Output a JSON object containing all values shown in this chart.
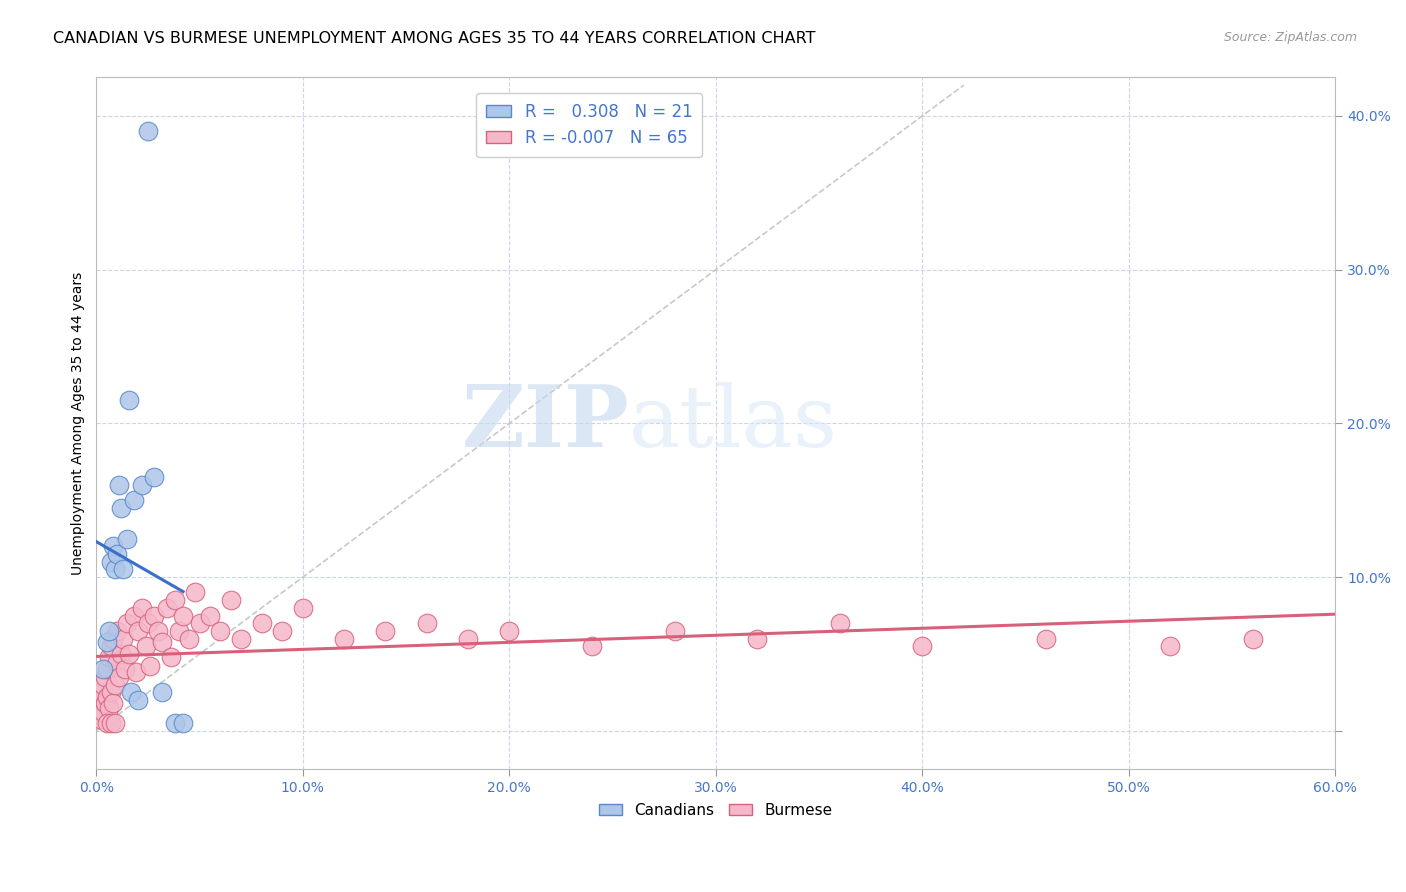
{
  "title": "CANADIAN VS BURMESE UNEMPLOYMENT AMONG AGES 35 TO 44 YEARS CORRELATION CHART",
  "source": "Source: ZipAtlas.com",
  "ylabel": "Unemployment Among Ages 35 to 44 years",
  "xlim": [
    0.0,
    0.6
  ],
  "ylim": [
    -0.025,
    0.425
  ],
  "xticks": [
    0.0,
    0.1,
    0.2,
    0.3,
    0.4,
    0.5,
    0.6
  ],
  "yticks": [
    0.0,
    0.1,
    0.2,
    0.3,
    0.4
  ],
  "canadian_fill": "#aec6e8",
  "canadian_edge": "#5588cc",
  "burmese_fill": "#f5b8cb",
  "burmese_edge": "#d9607a",
  "canadian_line_color": "#3a6fcc",
  "burmese_line_color": "#d9607a",
  "diagonal_color": "#bbbbbb",
  "R_canadian": 0.308,
  "N_canadian": 21,
  "R_burmese": -0.007,
  "N_burmese": 65,
  "watermark_zip": "ZIP",
  "watermark_atlas": "atlas",
  "background_color": "#ffffff",
  "grid_color": "#ccd6e8",
  "title_fontsize": 11.5,
  "source_fontsize": 9,
  "axis_label_fontsize": 10,
  "tick_fontsize": 10,
  "legend_fontsize": 12,
  "canadian_x": [
    0.003,
    0.005,
    0.006,
    0.007,
    0.008,
    0.009,
    0.01,
    0.011,
    0.012,
    0.013,
    0.015,
    0.016,
    0.017,
    0.018,
    0.02,
    0.022,
    0.025,
    0.028,
    0.032,
    0.038,
    0.042
  ],
  "canadian_y": [
    0.04,
    0.058,
    0.065,
    0.11,
    0.12,
    0.105,
    0.115,
    0.16,
    0.145,
    0.105,
    0.125,
    0.215,
    0.025,
    0.15,
    0.02,
    0.16,
    0.39,
    0.165,
    0.025,
    0.005,
    0.005
  ],
  "burmese_x": [
    0.001,
    0.002,
    0.002,
    0.003,
    0.003,
    0.004,
    0.004,
    0.005,
    0.005,
    0.006,
    0.006,
    0.007,
    0.007,
    0.008,
    0.008,
    0.009,
    0.01,
    0.01,
    0.011,
    0.012,
    0.013,
    0.014,
    0.015,
    0.016,
    0.018,
    0.019,
    0.02,
    0.022,
    0.024,
    0.025,
    0.026,
    0.028,
    0.03,
    0.032,
    0.034,
    0.036,
    0.038,
    0.04,
    0.042,
    0.045,
    0.048,
    0.05,
    0.055,
    0.06,
    0.065,
    0.07,
    0.08,
    0.09,
    0.1,
    0.12,
    0.14,
    0.16,
    0.18,
    0.2,
    0.24,
    0.28,
    0.32,
    0.36,
    0.4,
    0.46,
    0.52,
    0.56,
    0.005,
    0.007,
    0.009
  ],
  "burmese_y": [
    0.02,
    0.008,
    0.025,
    0.012,
    0.03,
    0.018,
    0.035,
    0.022,
    0.04,
    0.015,
    0.048,
    0.025,
    0.055,
    0.018,
    0.06,
    0.03,
    0.045,
    0.065,
    0.035,
    0.05,
    0.06,
    0.04,
    0.07,
    0.05,
    0.075,
    0.038,
    0.065,
    0.08,
    0.055,
    0.07,
    0.042,
    0.075,
    0.065,
    0.058,
    0.08,
    0.048,
    0.085,
    0.065,
    0.075,
    0.06,
    0.09,
    0.07,
    0.075,
    0.065,
    0.085,
    0.06,
    0.07,
    0.065,
    0.08,
    0.06,
    0.065,
    0.07,
    0.06,
    0.065,
    0.055,
    0.065,
    0.06,
    0.07,
    0.055,
    0.06,
    0.055,
    0.06,
    0.005,
    0.005,
    0.005
  ]
}
